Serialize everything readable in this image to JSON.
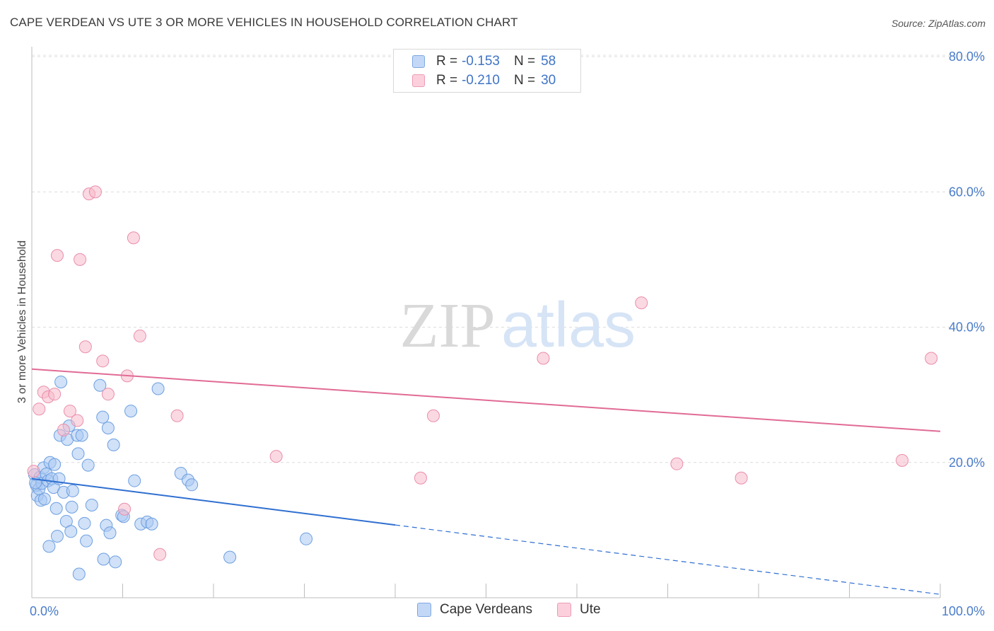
{
  "title": "CAPE VERDEAN VS UTE 3 OR MORE VEHICLES IN HOUSEHOLD CORRELATION CHART",
  "source": "Source: ZipAtlas.com",
  "watermark": {
    "zip": "ZIP",
    "atlas": "atlas"
  },
  "legend": {
    "rows": [
      {
        "r_label": "R =",
        "r_value": "-0.153",
        "n_label": "N =",
        "n_value": "58",
        "color": "#a9c8f2"
      },
      {
        "r_label": "R =",
        "r_value": "-0.210",
        "n_label": "N =",
        "n_value": "30",
        "color": "#f7b9cb"
      }
    ]
  },
  "bottom_legend": [
    {
      "label": "Cape Verdeans",
      "color": "#a9c8f2"
    },
    {
      "label": "Ute",
      "color": "#f7b9cb"
    }
  ],
  "chart_data": {
    "type": "scatter",
    "title": "CAPE VERDEAN VS UTE 3 OR MORE VEHICLES IN HOUSEHOLD CORRELATION CHART",
    "xlabel": "",
    "ylabel": "3 or more Vehicles in Household",
    "xlim": [
      0,
      100
    ],
    "ylim": [
      0,
      82
    ],
    "x_tick_labels": [
      "0.0%",
      "100.0%"
    ],
    "y_ticks": [
      20,
      40,
      60,
      80
    ],
    "y_tick_labels": [
      "20.0%",
      "40.0%",
      "60.0%",
      "80.0%"
    ],
    "series": [
      {
        "name": "Cape Verdeans",
        "color": "#a9c8f2",
        "stroke": "#6d9fe0",
        "line_color": "#2f6fd1",
        "trend": {
          "x0": 0,
          "y0": 17.6,
          "x1": 100,
          "y1": 0.5,
          "solid_until": 40
        },
        "points": [
          [
            0.3,
            18.2
          ],
          [
            0.5,
            16.6
          ],
          [
            0.6,
            15.1
          ],
          [
            0.8,
            16.1
          ],
          [
            0.9,
            17.8
          ],
          [
            1.0,
            14.4
          ],
          [
            1.1,
            16.9
          ],
          [
            1.3,
            19.2
          ],
          [
            1.4,
            14.6
          ],
          [
            1.6,
            18.3
          ],
          [
            1.8,
            17.3
          ],
          [
            1.9,
            7.6
          ],
          [
            2.0,
            20.0
          ],
          [
            2.2,
            17.6
          ],
          [
            2.4,
            16.3
          ],
          [
            2.5,
            19.7
          ],
          [
            2.7,
            13.2
          ],
          [
            2.8,
            9.1
          ],
          [
            3.0,
            17.6
          ],
          [
            3.1,
            24.0
          ],
          [
            3.2,
            31.9
          ],
          [
            3.5,
            15.6
          ],
          [
            3.8,
            11.3
          ],
          [
            3.9,
            23.4
          ],
          [
            4.1,
            25.4
          ],
          [
            4.3,
            9.8
          ],
          [
            4.4,
            13.4
          ],
          [
            4.5,
            15.8
          ],
          [
            5.0,
            24.0
          ],
          [
            5.1,
            21.3
          ],
          [
            5.2,
            3.5
          ],
          [
            5.5,
            24.0
          ],
          [
            5.8,
            11.0
          ],
          [
            6.0,
            8.4
          ],
          [
            6.2,
            19.6
          ],
          [
            6.6,
            13.7
          ],
          [
            7.5,
            31.4
          ],
          [
            7.8,
            26.7
          ],
          [
            7.9,
            5.7
          ],
          [
            8.2,
            10.7
          ],
          [
            8.4,
            25.1
          ],
          [
            8.6,
            9.6
          ],
          [
            9.0,
            22.6
          ],
          [
            9.2,
            5.3
          ],
          [
            9.9,
            12.2
          ],
          [
            10.1,
            12.0
          ],
          [
            10.9,
            27.6
          ],
          [
            11.3,
            17.3
          ],
          [
            12.0,
            10.9
          ],
          [
            12.7,
            11.2
          ],
          [
            13.2,
            10.9
          ],
          [
            13.9,
            30.9
          ],
          [
            16.4,
            18.4
          ],
          [
            17.2,
            17.4
          ],
          [
            17.6,
            16.7
          ],
          [
            21.8,
            6.0
          ],
          [
            30.2,
            8.7
          ],
          [
            0.4,
            17.0
          ]
        ]
      },
      {
        "name": "Ute",
        "color": "#f7b9cb",
        "stroke": "#ea8eab",
        "line_color": "#e16b95",
        "trend": {
          "x0": 0,
          "y0": 33.8,
          "x1": 100,
          "y1": 24.6,
          "solid_until": 100
        },
        "points": [
          [
            0.2,
            18.7
          ],
          [
            0.8,
            27.9
          ],
          [
            1.3,
            30.4
          ],
          [
            1.8,
            29.7
          ],
          [
            2.5,
            30.1
          ],
          [
            2.8,
            50.6
          ],
          [
            3.5,
            24.8
          ],
          [
            4.2,
            27.6
          ],
          [
            5.0,
            26.2
          ],
          [
            5.3,
            50.0
          ],
          [
            5.9,
            37.1
          ],
          [
            6.3,
            59.7
          ],
          [
            7.0,
            60.0
          ],
          [
            7.8,
            35.0
          ],
          [
            8.4,
            30.1
          ],
          [
            10.2,
            13.1
          ],
          [
            10.5,
            32.8
          ],
          [
            11.2,
            53.2
          ],
          [
            11.9,
            38.7
          ],
          [
            14.1,
            6.4
          ],
          [
            16.0,
            26.9
          ],
          [
            26.9,
            20.9
          ],
          [
            42.8,
            17.7
          ],
          [
            44.2,
            26.9
          ],
          [
            56.3,
            35.4
          ],
          [
            67.1,
            43.6
          ],
          [
            71.0,
            19.8
          ],
          [
            78.1,
            17.7
          ],
          [
            95.8,
            20.3
          ],
          [
            99.0,
            35.4
          ]
        ]
      }
    ]
  }
}
